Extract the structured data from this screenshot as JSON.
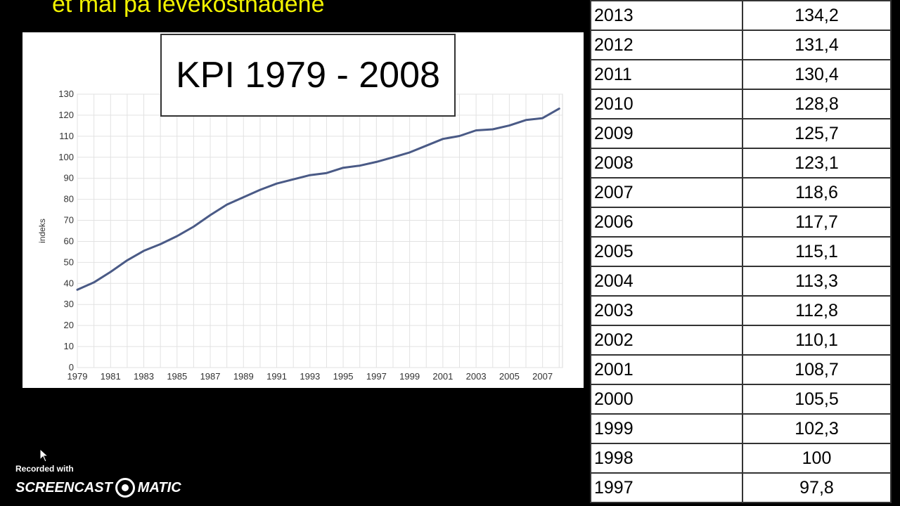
{
  "slide_heading": "et mål på levekostnadene",
  "chart_data": {
    "type": "line",
    "title": "KPI 1979 - 2008",
    "ylabel": "indeks",
    "xlabel": "",
    "xlim": [
      1979,
      2008.2
    ],
    "ylim": [
      0,
      130
    ],
    "yticks": [
      0,
      10,
      20,
      30,
      40,
      50,
      60,
      70,
      80,
      90,
      100,
      110,
      120,
      130
    ],
    "xtick_labels": [
      "1979",
      "1981",
      "1983",
      "1985",
      "1987",
      "1989",
      "1991",
      "1993",
      "1995",
      "1997",
      "1999",
      "2001",
      "2003",
      "2005",
      "2007"
    ],
    "grid": true,
    "color": "#4a5a86",
    "series": [
      {
        "x": [
          1979,
          1980,
          1981,
          1982,
          1983,
          1984,
          1985,
          1986,
          1987,
          1988,
          1989,
          1990,
          1991,
          1992,
          1993,
          1994,
          1995,
          1996,
          1997,
          1998,
          1999,
          2000,
          2001,
          2002,
          2003,
          2004,
          2005,
          2006,
          2007,
          2008
        ],
        "values": [
          37,
          40.5,
          45.5,
          51,
          55.5,
          58.7,
          62.5,
          67,
          72.5,
          77.5,
          81,
          84.5,
          87.5,
          89.5,
          91.5,
          92.5,
          95,
          96,
          97.8,
          100,
          102.3,
          105.5,
          108.7,
          110.1,
          112.8,
          113.3,
          115.1,
          117.7,
          118.6,
          123.1
        ]
      }
    ]
  },
  "table": {
    "rows": [
      {
        "year": "2013",
        "kpi": "134,2"
      },
      {
        "year": "2012",
        "kpi": "131,4"
      },
      {
        "year": "2011",
        "kpi": "130,4"
      },
      {
        "year": "2010",
        "kpi": "128,8"
      },
      {
        "year": "2009",
        "kpi": "125,7"
      },
      {
        "year": "2008",
        "kpi": "123,1"
      },
      {
        "year": "2007",
        "kpi": "118,6"
      },
      {
        "year": "2006",
        "kpi": "117,7"
      },
      {
        "year": "2005",
        "kpi": "115,1"
      },
      {
        "year": "2004",
        "kpi": "113,3"
      },
      {
        "year": "2003",
        "kpi": "112,8"
      },
      {
        "year": "2002",
        "kpi": "110,1"
      },
      {
        "year": "2001",
        "kpi": "108,7"
      },
      {
        "year": "2000",
        "kpi": "105,5"
      },
      {
        "year": "1999",
        "kpi": "102,3"
      },
      {
        "year": "1998",
        "kpi": "100"
      },
      {
        "year": "1997",
        "kpi": "97,8"
      }
    ]
  },
  "watermark": {
    "recorded_with": "Recorded with",
    "brand_left": "SCREENCAST",
    "brand_right": "MATIC",
    "icon": "record-icon"
  },
  "cursor": {
    "icon": "mouse-pointer-icon"
  }
}
